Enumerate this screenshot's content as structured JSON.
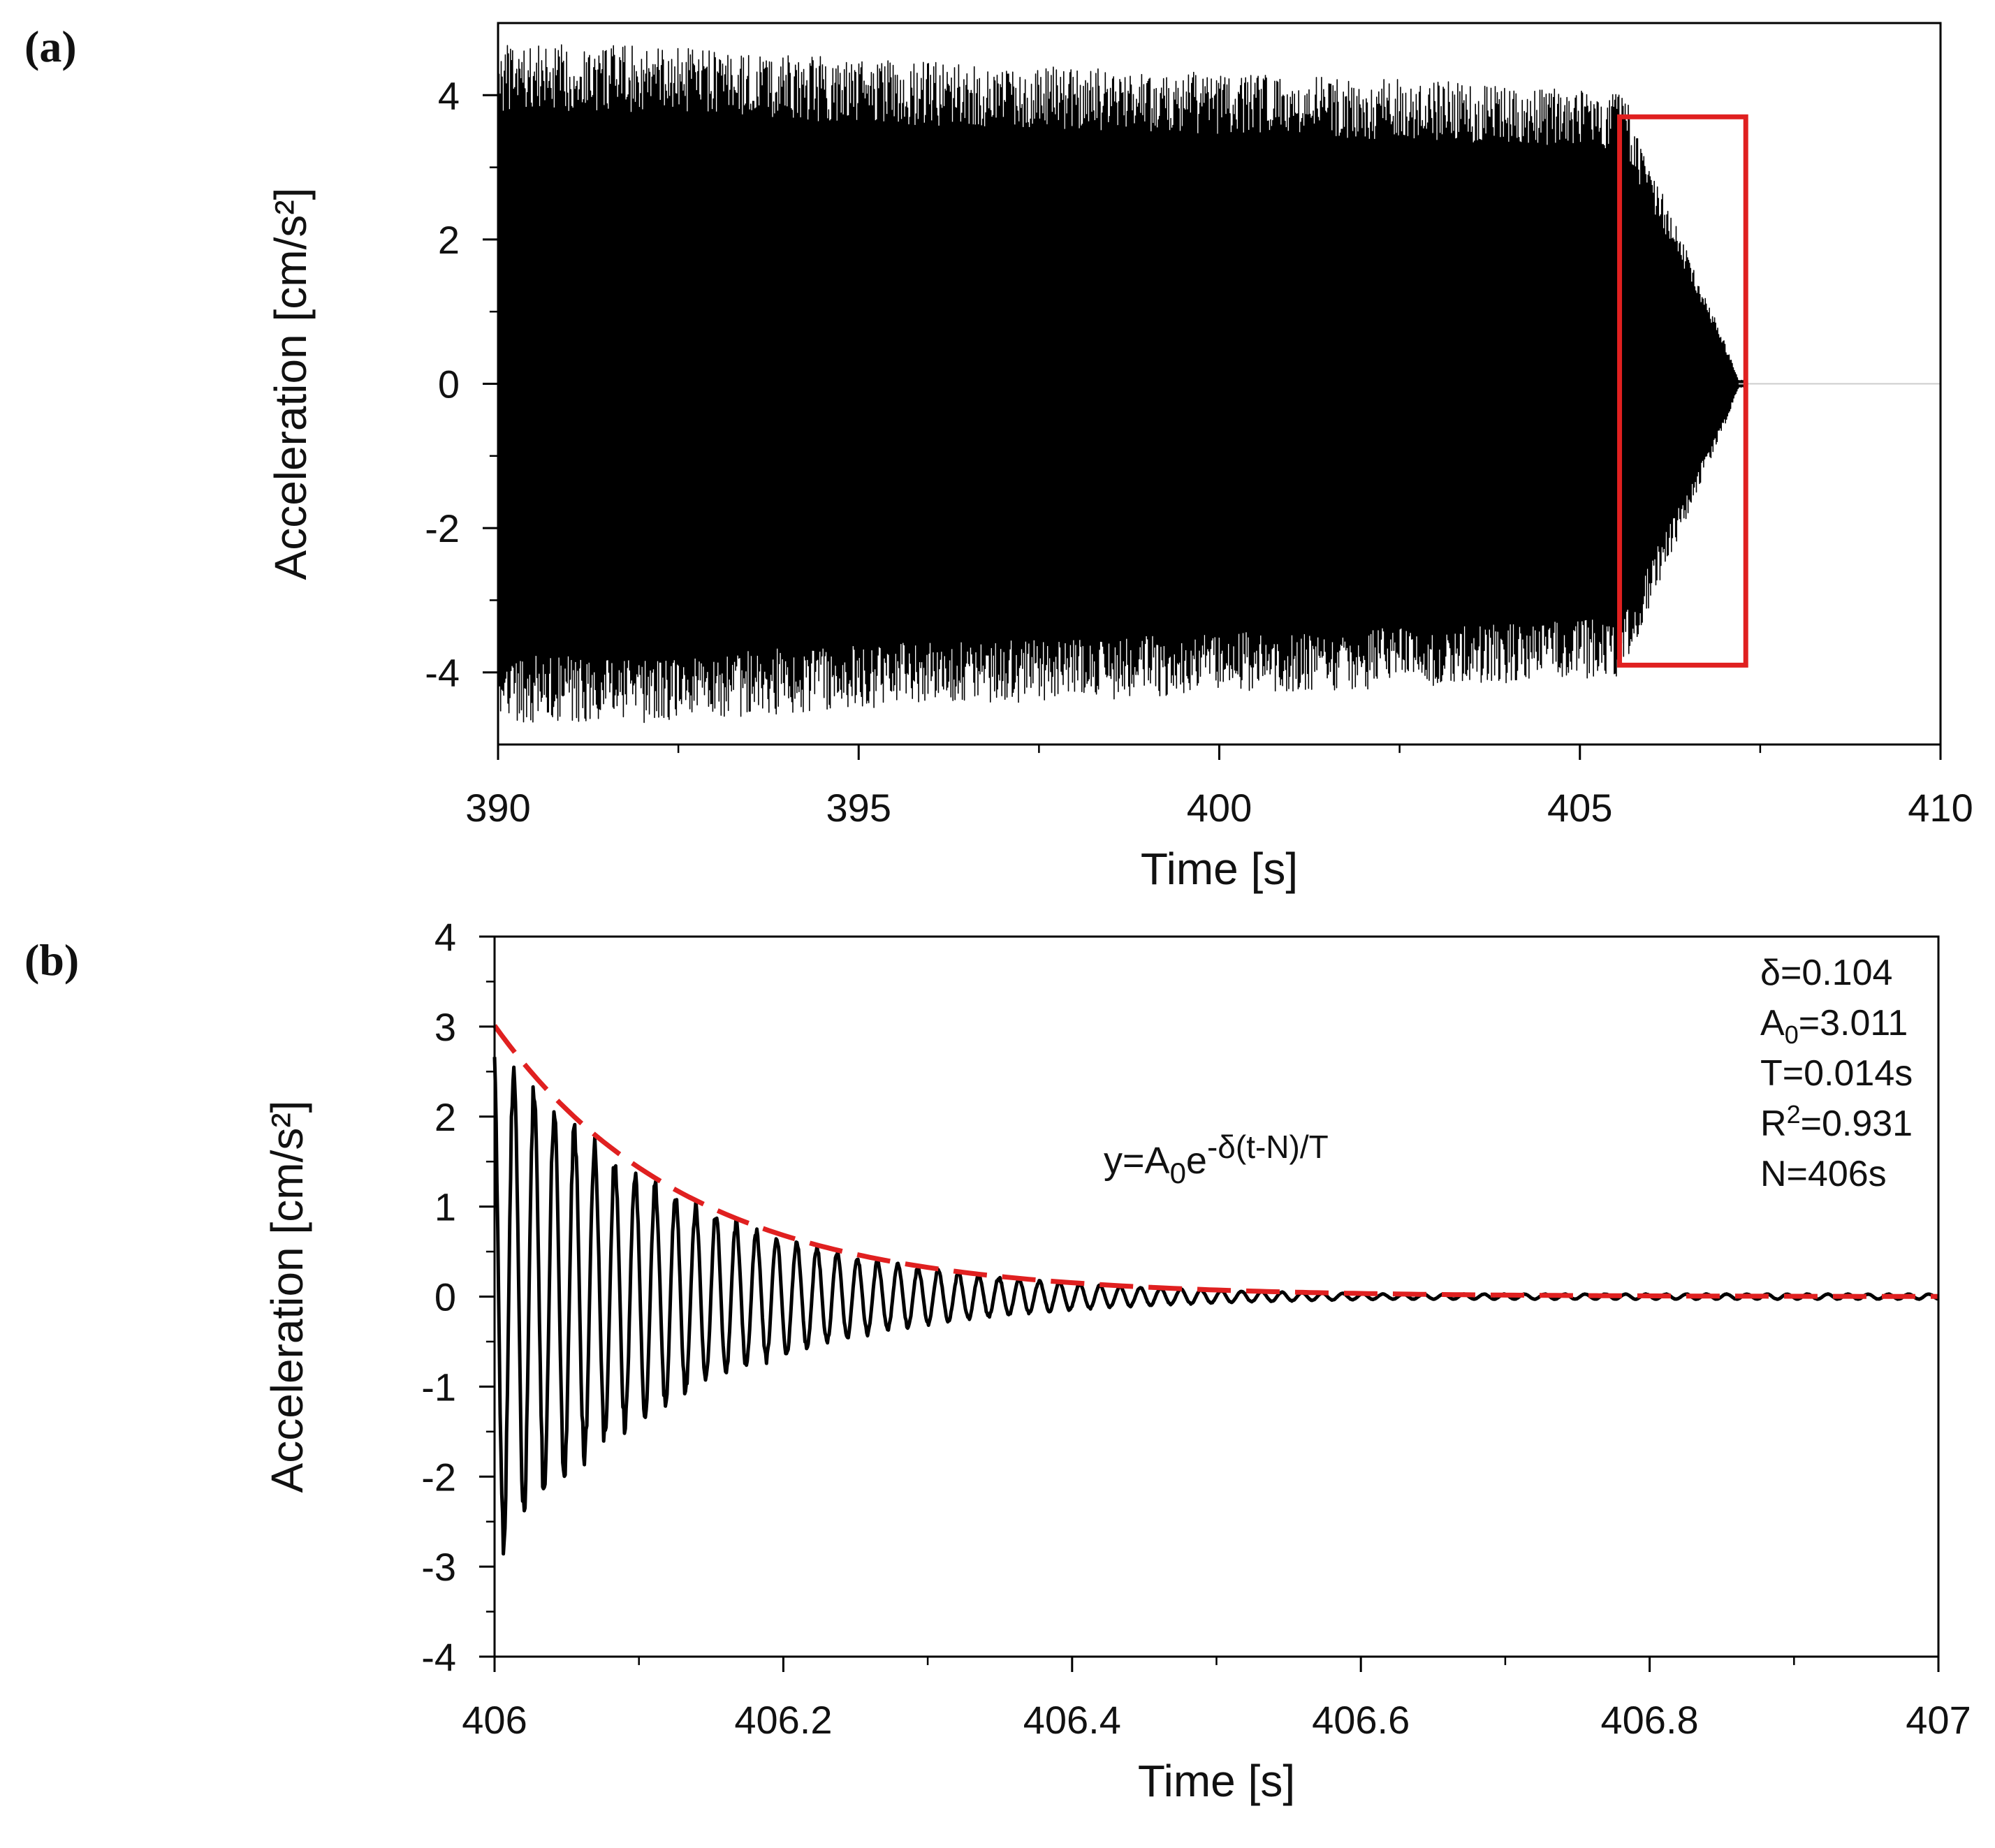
{
  "chart_data": [
    {
      "type": "line",
      "panel_label": "(a)",
      "xlabel": "Time [s]",
      "ylabel": "Acceleration [cm/s²]",
      "xlim": [
        390,
        410
      ],
      "ylim": [
        -5,
        5
      ],
      "x_ticks": [
        390,
        395,
        400,
        405,
        410
      ],
      "x_tick_labels": [
        "390",
        "395",
        "400",
        "405",
        "410"
      ],
      "y_ticks": [
        -4,
        -2,
        0,
        2,
        4
      ],
      "y_tick_labels": [
        "-4",
        "-2",
        "0",
        "2",
        "4"
      ],
      "series": [
        {
          "name": "acceleration",
          "color": "#000000",
          "signal": "dense oscillation, amplitude ~4.7 at 390 s decreasing to ~4.0 at 405.6 s, then exponential decay to 0 by ~407.2 s",
          "envelope_t": [
            390,
            392,
            395,
            398,
            400,
            403,
            405.6,
            406,
            406.5,
            407.0,
            407.2,
            410
          ],
          "envelope_a": [
            4.7,
            4.7,
            4.5,
            4.4,
            4.3,
            4.2,
            4.05,
            3.0,
            1.8,
            0.6,
            0.05,
            0.0
          ]
        }
      ],
      "annotations": [
        {
          "type": "rectangle",
          "color": "#e02020",
          "x0": 405.55,
          "x1": 407.3,
          "y0": -3.9,
          "y1": 3.7
        }
      ]
    },
    {
      "type": "line",
      "panel_label": "(b)",
      "xlabel": "Time [s]",
      "ylabel": "Acceleration [cm/s²]",
      "xlim": [
        406,
        407
      ],
      "ylim": [
        -4,
        4
      ],
      "x_ticks": [
        406,
        406.2,
        406.4,
        406.6,
        406.8,
        407
      ],
      "x_tick_labels": [
        "406",
        "406.2",
        "406.4",
        "406.6",
        "406.8",
        "407"
      ],
      "y_ticks": [
        -4,
        -3,
        -2,
        -1,
        0,
        1,
        2,
        3,
        4
      ],
      "y_tick_labels": [
        "-4",
        "-3",
        "-2",
        "-1",
        "0",
        "1",
        "2",
        "3",
        "4"
      ],
      "series": [
        {
          "name": "acceleration",
          "color": "#000000",
          "signal": "damped oscillation, period ~0.014 s, amplitude decaying from ~3.0 toward 0"
        },
        {
          "name": "fit",
          "color": "#e02020",
          "dashed": true,
          "formula": "y=A0*exp(-delta*(t-N)/T)",
          "A0": 3.011,
          "delta": 0.104,
          "T": 0.014,
          "N": 406
        }
      ],
      "equation_parts": {
        "lead": "y=A",
        "sub": "0",
        "mid": "e",
        "sup": "-δ(t-N)/T"
      },
      "stats": [
        {
          "main": "δ=0.104"
        },
        {
          "pre": "A",
          "sub": "0",
          "post": "=3.011"
        },
        {
          "main": "T=0.014s"
        },
        {
          "pre": "R",
          "sup": "2",
          "post": "=0.931"
        },
        {
          "main": "N=406s"
        }
      ]
    }
  ]
}
